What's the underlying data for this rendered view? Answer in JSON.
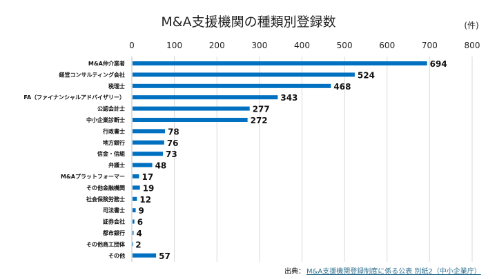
{
  "chart_data": {
    "type": "bar",
    "orientation": "horizontal",
    "title": "M&A支援機関の種類別登録数",
    "unit_label": "(件)",
    "xlim": [
      0,
      800
    ],
    "ticks": [
      0,
      100,
      200,
      300,
      400,
      500,
      600,
      700,
      800
    ],
    "grid": true,
    "bar_color": "#0070c0",
    "categories": [
      "M&A仲介業者",
      "経営コンサルティング会社",
      "税理士",
      "FA（ファイナンシャルアドバイザリー）",
      "公認会計士",
      "中小企業診断士",
      "行政書士",
      "地方銀行",
      "信金・信組",
      "弁護士",
      "M&Aプラットフォーマー",
      "その他金融機関",
      "社会保険労務士",
      "司法書士",
      "証券会社",
      "都市銀行",
      "その他商工団体",
      "その他"
    ],
    "values": [
      694,
      524,
      468,
      343,
      277,
      272,
      78,
      76,
      73,
      48,
      17,
      19,
      12,
      9,
      6,
      4,
      2,
      57
    ]
  },
  "source": {
    "prefix": "出典：",
    "link_text": "M&A支援機関登録制度に係る公表 別紙2（中小企業庁）"
  }
}
